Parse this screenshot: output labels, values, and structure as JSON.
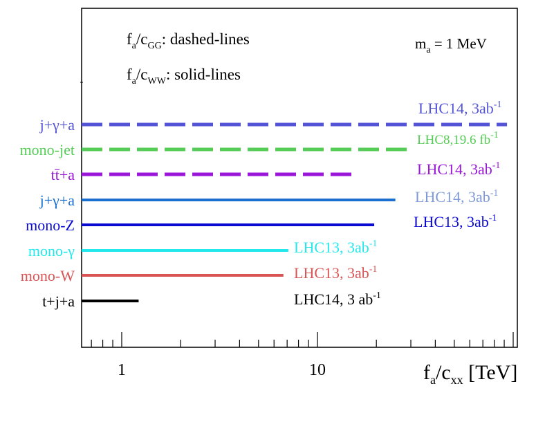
{
  "chart_data": {
    "type": "horizontal-bounds",
    "xscale": "log",
    "xlim": [
      0.66,
      100
    ],
    "x_tick_labels": [
      "1",
      "10"
    ],
    "xlabel": {
      "main": "f",
      "sub1": "a",
      "mid": "/c",
      "sub2": "xx",
      "tail": " [TeV]"
    },
    "annotations": {
      "dashed_note": {
        "main": "f",
        "sub1": "a",
        "mid": "/c",
        "sub2": "GG",
        "tail": ": dashed-lines"
      },
      "solid_note": {
        "main": "f",
        "sub1": "a",
        "mid": "/c",
        "sub2": "WW",
        "tail": ": solid-lines"
      },
      "mass_note": {
        "main": "m",
        "sub1": "a",
        "tail": " = 1 MeV"
      }
    },
    "series": [
      {
        "name": "j+γ+a",
        "style": "dashed",
        "color": "#5454d6",
        "xmax": 93,
        "label_main": "LHC14, 3ab",
        "label_sup": "-1"
      },
      {
        "name": "mono-jet",
        "style": "dashed",
        "color": "#55cc55",
        "xmax": 30,
        "label_main": "LHC8,19.6 fb",
        "label_sup": "-1"
      },
      {
        "name": "tt̄+a",
        "style": "dashed",
        "color": "#9a16d8",
        "xmax": 15.5,
        "label_main": "LHC14, 3ab",
        "label_sup": "-1"
      },
      {
        "name": "j+γ+a",
        "style": "solid",
        "color": "#1a6fd0",
        "xmax": 25,
        "label_main": "LHC14, 3ab",
        "label_sup": "-1",
        "label_color": "#7f9ad8"
      },
      {
        "name": "mono-Z",
        "style": "solid",
        "color": "#0a0ad0",
        "xmax": 19.5,
        "label_main": "LHC13, 3ab",
        "label_sup": "-1"
      },
      {
        "name": "mono-γ",
        "style": "solid",
        "color": "#22e8ec",
        "xmax": 7.1,
        "label_main": "LHC13, 3ab",
        "label_sup": "-1"
      },
      {
        "name": "mono-W",
        "style": "solid",
        "color": "#d95555",
        "xmax": 6.7,
        "label_main": "LHC13, 3ab",
        "label_sup": "-1"
      },
      {
        "name": "t+j+a",
        "style": "solid",
        "color": "#000000",
        "xmax": 1.22,
        "label_main": "LHC14, 3 ab",
        "label_sup": "-1",
        "label_color": "#000000",
        "name_color": "#000000"
      }
    ]
  }
}
